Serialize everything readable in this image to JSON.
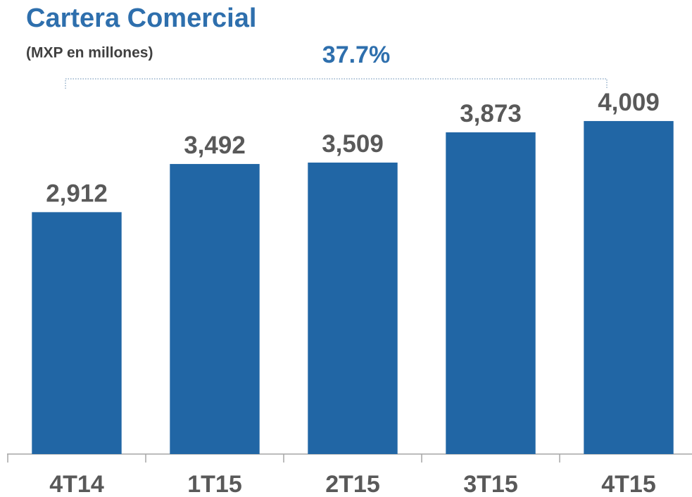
{
  "chart_data": {
    "type": "bar",
    "title": "Cartera Comercial",
    "subtitle": "(MXP en millones)",
    "annotation": "37.7%",
    "categories": [
      "4T14",
      "1T15",
      "2T15",
      "3T15",
      "4T15"
    ],
    "values": [
      2912,
      3492,
      3509,
      3873,
      4009
    ],
    "value_labels": [
      "2,912",
      "3,492",
      "3,509",
      "3,873",
      "4,009"
    ],
    "color": "#2166a5",
    "ylim": [
      0,
      5000
    ]
  }
}
